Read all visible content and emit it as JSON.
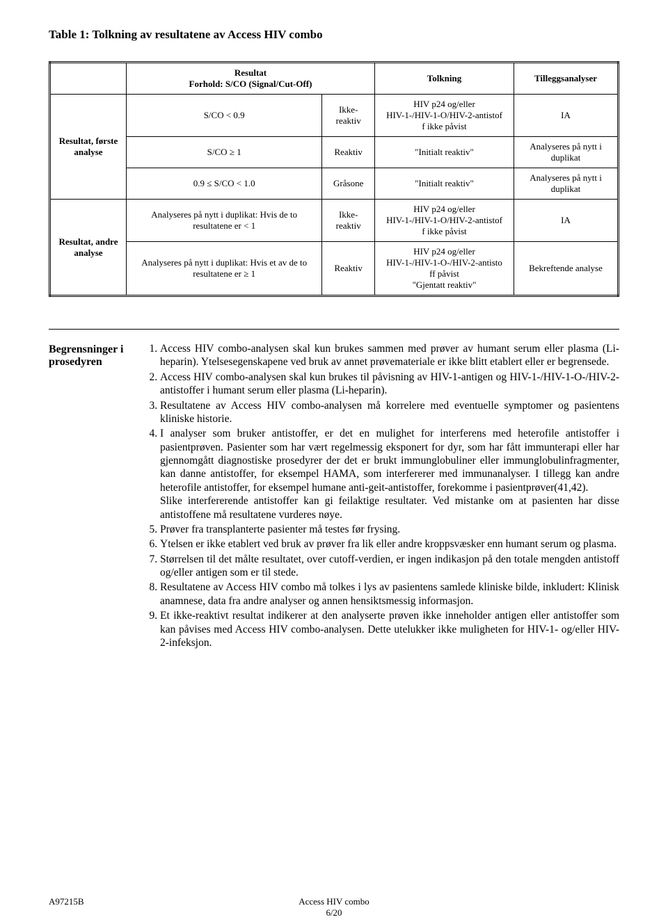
{
  "table_title": "Table 1: Tolkning av resultatene av Access HIV combo",
  "header": {
    "c1": "",
    "c2": "Resultat\nForhold: S/CO (Signal/Cut-Off)",
    "c3": "",
    "c4": "Tolkning",
    "c5": "Tilleggsanalyser"
  },
  "rows": {
    "r1_head": "Resultat, første analyse",
    "r1a": {
      "ratio": "S/CO < 0.9",
      "react": "Ikke-reaktiv",
      "tolk": "HIV p24 og/eller\nHIV-1-/HIV-1-O/HIV-2-antistof\nf ikke påvist",
      "till": "IA"
    },
    "r1b": {
      "ratio": "S/CO ≥ 1",
      "react": "Reaktiv",
      "tolk": "\"Initialt reaktiv\"",
      "till": "Analyseres på nytt i duplikat"
    },
    "r1c": {
      "ratio": "0.9 ≤ S/CO < 1.0",
      "react": "Gråsone",
      "tolk": "\"Initialt reaktiv\"",
      "till": "Analyseres på nytt i duplikat"
    },
    "r2_head": "Resultat, andre analyse",
    "r2a": {
      "ratio": "Analyseres på nytt i duplikat: Hvis de to resultatene er < 1",
      "react": "Ikke-reaktiv",
      "tolk": "HIV p24 og/eller\nHIV-1-/HIV-1-O/HIV-2-antistof\nf ikke påvist",
      "till": "IA"
    },
    "r2b": {
      "ratio": "Analyseres på nytt i duplikat: Hvis et av de to resultatene er ≥ 1",
      "react": "Reaktiv",
      "tolk": "HIV p24 og/eller\nHIV-1-/HIV-1-O-/HIV-2-antisto\nff påvist\n\"Gjentatt reaktiv\"",
      "till": "Bekreftende analyse"
    }
  },
  "section_heading": "Begrensninger i prosedyren",
  "limits": [
    "Access HIV combo-analysen skal kun brukes sammen med prøver av humant serum eller plasma (Li-heparin). Ytelsesegenskapene ved bruk av annet prøvemateriale er ikke blitt etablert eller er begrensede.",
    "Access HIV combo-analysen skal kun brukes til påvisning av HIV-1-antigen og HIV-1-/HIV-1-O-/HIV-2-antistoffer i humant serum eller plasma (Li-heparin).",
    "Resultatene av Access HIV combo-analysen må korrelere med eventuelle symptomer og pasientens kliniske historie.",
    "I analyser som bruker antistoffer, er det en mulighet for interferens med heterofile antistoffer i pasientprøven. Pasienter som har vært regelmessig eksponert for dyr, som har fått immunterapi eller har gjennomgått diagnostiske prosedyrer der det er brukt immunglobuliner eller immunglobulinfragmenter, kan danne antistoffer, for eksempel HAMA, som interfererer med immunanalyser. I tillegg kan andre heterofile antistoffer, for eksempel humane anti-geit-antistoffer, forekomme i pasientprøver(41,42).\nSlike interfererende antistoffer kan gi feilaktige resultater. Ved mistanke om at pasienten har disse antistoffene må resultatene vurderes nøye.",
    "Prøver fra transplanterte pasienter må testes før frysing.",
    "Ytelsen er ikke etablert ved bruk av prøver fra lik eller andre kroppsvæsker enn humant serum og plasma.",
    "Størrelsen til det målte resultatet, over cutoff-verdien, er ingen indikasjon på den totale mengden antistoff og/eller antigen som er til stede.",
    "Resultatene av Access HIV combo må tolkes i lys av pasientens samlede kliniske bilde, inkludert: Klinisk anamnese, data fra andre analyser og annen hensiktsmessig informasjon.",
    "Et ikke-reaktivt resultat indikerer at den analyserte prøven ikke inneholder antigen eller antistoffer som kan påvises med Access HIV combo-analysen. Dette utelukker ikke muligheten for HIV-1- og/eller HIV-2-infeksjon."
  ],
  "footer": {
    "left": "A97215B",
    "center": "Access HIV combo",
    "page": "6/20"
  }
}
